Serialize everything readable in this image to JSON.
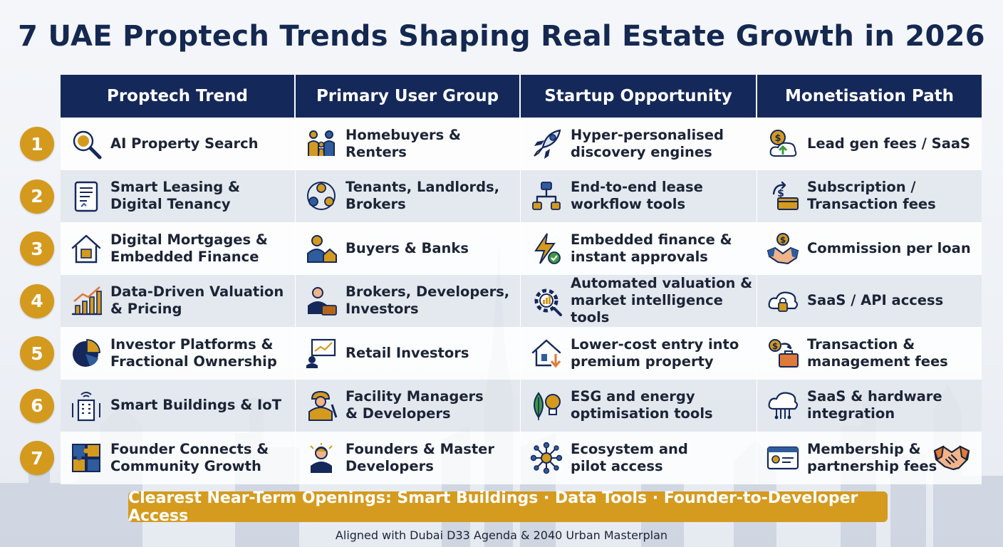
{
  "title": "7 UAE Proptech Trends Shaping Real Estate Growth in 2026",
  "headers": [
    "Proptech Trend",
    "Primary User Group",
    "Startup Opportunity",
    "Monetisation Path"
  ],
  "rows": [
    {
      "num": "1",
      "trend": "AI Property Search",
      "user": "Homebuyers &\nRenters",
      "opportunity": "Hyper-personalised\ndiscovery engines",
      "monetisation": "Lead gen fees / SaaS",
      "icons": [
        "magnifier-brain-icon",
        "family-icon",
        "rocket-icon",
        "dollar-cloud-icon"
      ]
    },
    {
      "num": "2",
      "trend": "Smart Leasing &\nDigital Tenancy",
      "user": "Tenants, Landlords,\nBrokers",
      "opportunity": "End-to-end lease\nworkflow tools",
      "monetisation": "Subscription /\nTransaction fees",
      "icons": [
        "tablet-contract-icon",
        "people-network-icon",
        "workflow-icon",
        "subscription-card-icon"
      ]
    },
    {
      "num": "3",
      "trend": "Digital Mortgages &\nEmbedded Finance",
      "user": "Buyers & Banks",
      "opportunity": "Embedded finance &\ninstant approvals",
      "monetisation": "Commission per loan",
      "icons": [
        "house-chip-icon",
        "buyer-house-icon",
        "lightning-check-icon",
        "handshake-coin-icon"
      ]
    },
    {
      "num": "4",
      "trend": "Data-Driven Valuation\n& Pricing",
      "user": "Brokers, Developers,\nInvestors",
      "opportunity": "Automated valuation &\nmarket intelligence tools",
      "monetisation": "SaaS / API access",
      "icons": [
        "bar-chart-icon",
        "businessman-icon",
        "gear-chart-icon",
        "cloud-lock-icon"
      ]
    },
    {
      "num": "5",
      "trend": "Investor Platforms &\nFractional Ownership",
      "user": "Retail Investors",
      "opportunity": "Lower-cost entry into\npremium property",
      "monetisation": "Transaction &\nmanagement fees",
      "icons": [
        "pie-chart-icon",
        "presenter-chart-icon",
        "house-down-arrow-icon",
        "dollar-briefcase-icon"
      ]
    },
    {
      "num": "6",
      "trend": "Smart Buildings & IoT",
      "user": "Facility Managers\n& Developers",
      "opportunity": "ESG and energy\noptimisation tools",
      "monetisation": "SaaS & hardware\nintegration",
      "icons": [
        "smart-building-icon",
        "worker-icon",
        "leaf-bulb-icon",
        "cloud-circuit-icon"
      ]
    },
    {
      "num": "7",
      "trend": "Founder Connects &\nCommunity Growth",
      "user": "Founders & Master\nDevelopers",
      "opportunity": "Ecosystem and\npilot access",
      "monetisation": "Membership &\npartnership fees",
      "icons": [
        "puzzle-icon",
        "founder-icon",
        "network-hub-icon",
        "id-card-icon"
      ]
    }
  ],
  "banner": "Clearest Near-Term Openings: Smart Buildings · Data Tools · Founder-to-Developer Access",
  "footer": "Aligned with Dubai D33 Agenda & 2040 Urban Masterplan",
  "colors": {
    "navy": "#14285a",
    "gold": "#d49a1e",
    "blue": "#2f5c9c",
    "green": "#3f9a45"
  }
}
